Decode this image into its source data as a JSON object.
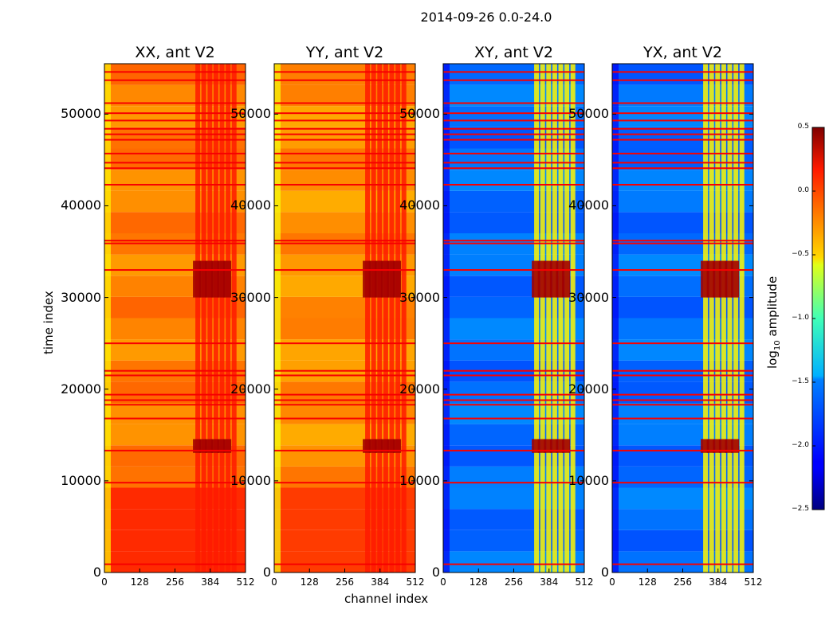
{
  "chart_data": {
    "type": "heatmap",
    "title": "2014-09-26 0.0-24.0",
    "xlabel": "channel index",
    "ylabel": "time index",
    "xlim": [
      0,
      512
    ],
    "ylim": [
      0,
      55500
    ],
    "xticks": [
      "0",
      "128",
      "256",
      "384",
      "512"
    ],
    "yticks": [
      {
        "label": "0",
        "value": 0
      },
      {
        "label": "10000",
        "value": 10000
      },
      {
        "label": "20000",
        "value": 20000
      },
      {
        "label": "30000",
        "value": 30000
      },
      {
        "label": "40000",
        "value": 40000
      },
      {
        "label": "50000",
        "value": 50000
      }
    ],
    "panels": [
      {
        "title": "XX, ant V2",
        "baseline_log_amp": -0.25
      },
      {
        "title": "YY, ant V2",
        "baseline_log_amp": -0.3
      },
      {
        "title": "XY, ant V2",
        "baseline_log_amp": -1.8
      },
      {
        "title": "YX, ant V2",
        "baseline_log_amp": -1.8
      }
    ],
    "colorbar": {
      "label": "log",
      "label_sub": "10",
      "label_suffix": " amplitude",
      "range": [
        -2.5,
        0.5
      ],
      "ticks": [
        "0.5",
        "0.0",
        "−0.5",
        "−1.0",
        "−1.5",
        "−2.0",
        "−2.5"
      ],
      "colormap": "jet"
    }
  }
}
